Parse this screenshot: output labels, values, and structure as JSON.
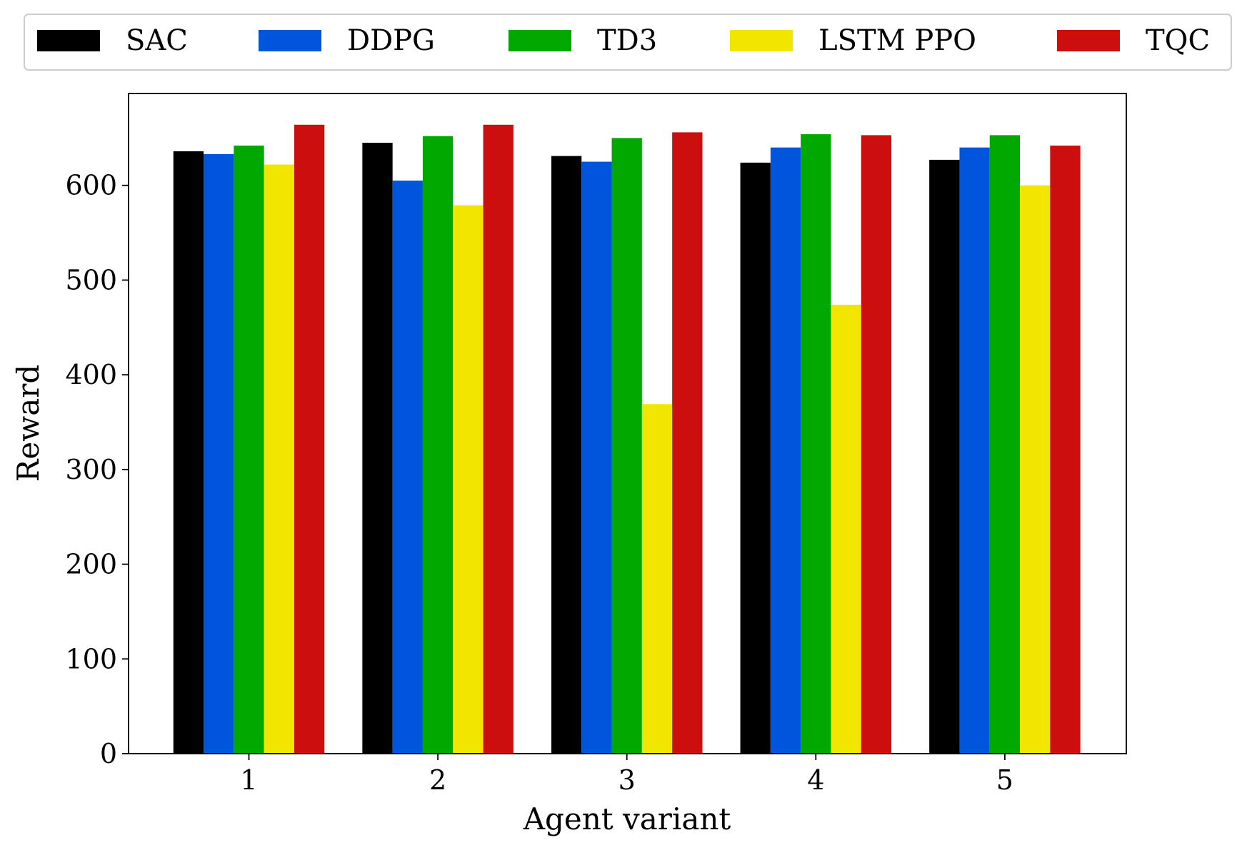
{
  "chart_data": {
    "type": "bar",
    "categories": [
      "1",
      "2",
      "3",
      "4",
      "5"
    ],
    "series": [
      {
        "name": "SAC",
        "color": "#000000",
        "values": [
          636,
          645,
          631,
          624,
          627
        ]
      },
      {
        "name": "DDPG",
        "color": "#0055dd",
        "values": [
          633,
          605,
          625,
          640,
          640
        ]
      },
      {
        "name": "TD3",
        "color": "#00a800",
        "values": [
          642,
          652,
          650,
          654,
          653
        ]
      },
      {
        "name": "LSTM PPO",
        "color": "#f2e500",
        "values": [
          622,
          579,
          369,
          474,
          600
        ]
      },
      {
        "name": "TQC",
        "color": "#cc0e0e",
        "values": [
          664,
          664,
          656,
          653,
          642
        ]
      }
    ],
    "xlabel": "Agent variant",
    "ylabel": "Reward",
    "ylim": [
      0,
      697
    ],
    "yticks": [
      0,
      100,
      200,
      300,
      400,
      500,
      600
    ],
    "grid": false,
    "legend_position": "top"
  }
}
